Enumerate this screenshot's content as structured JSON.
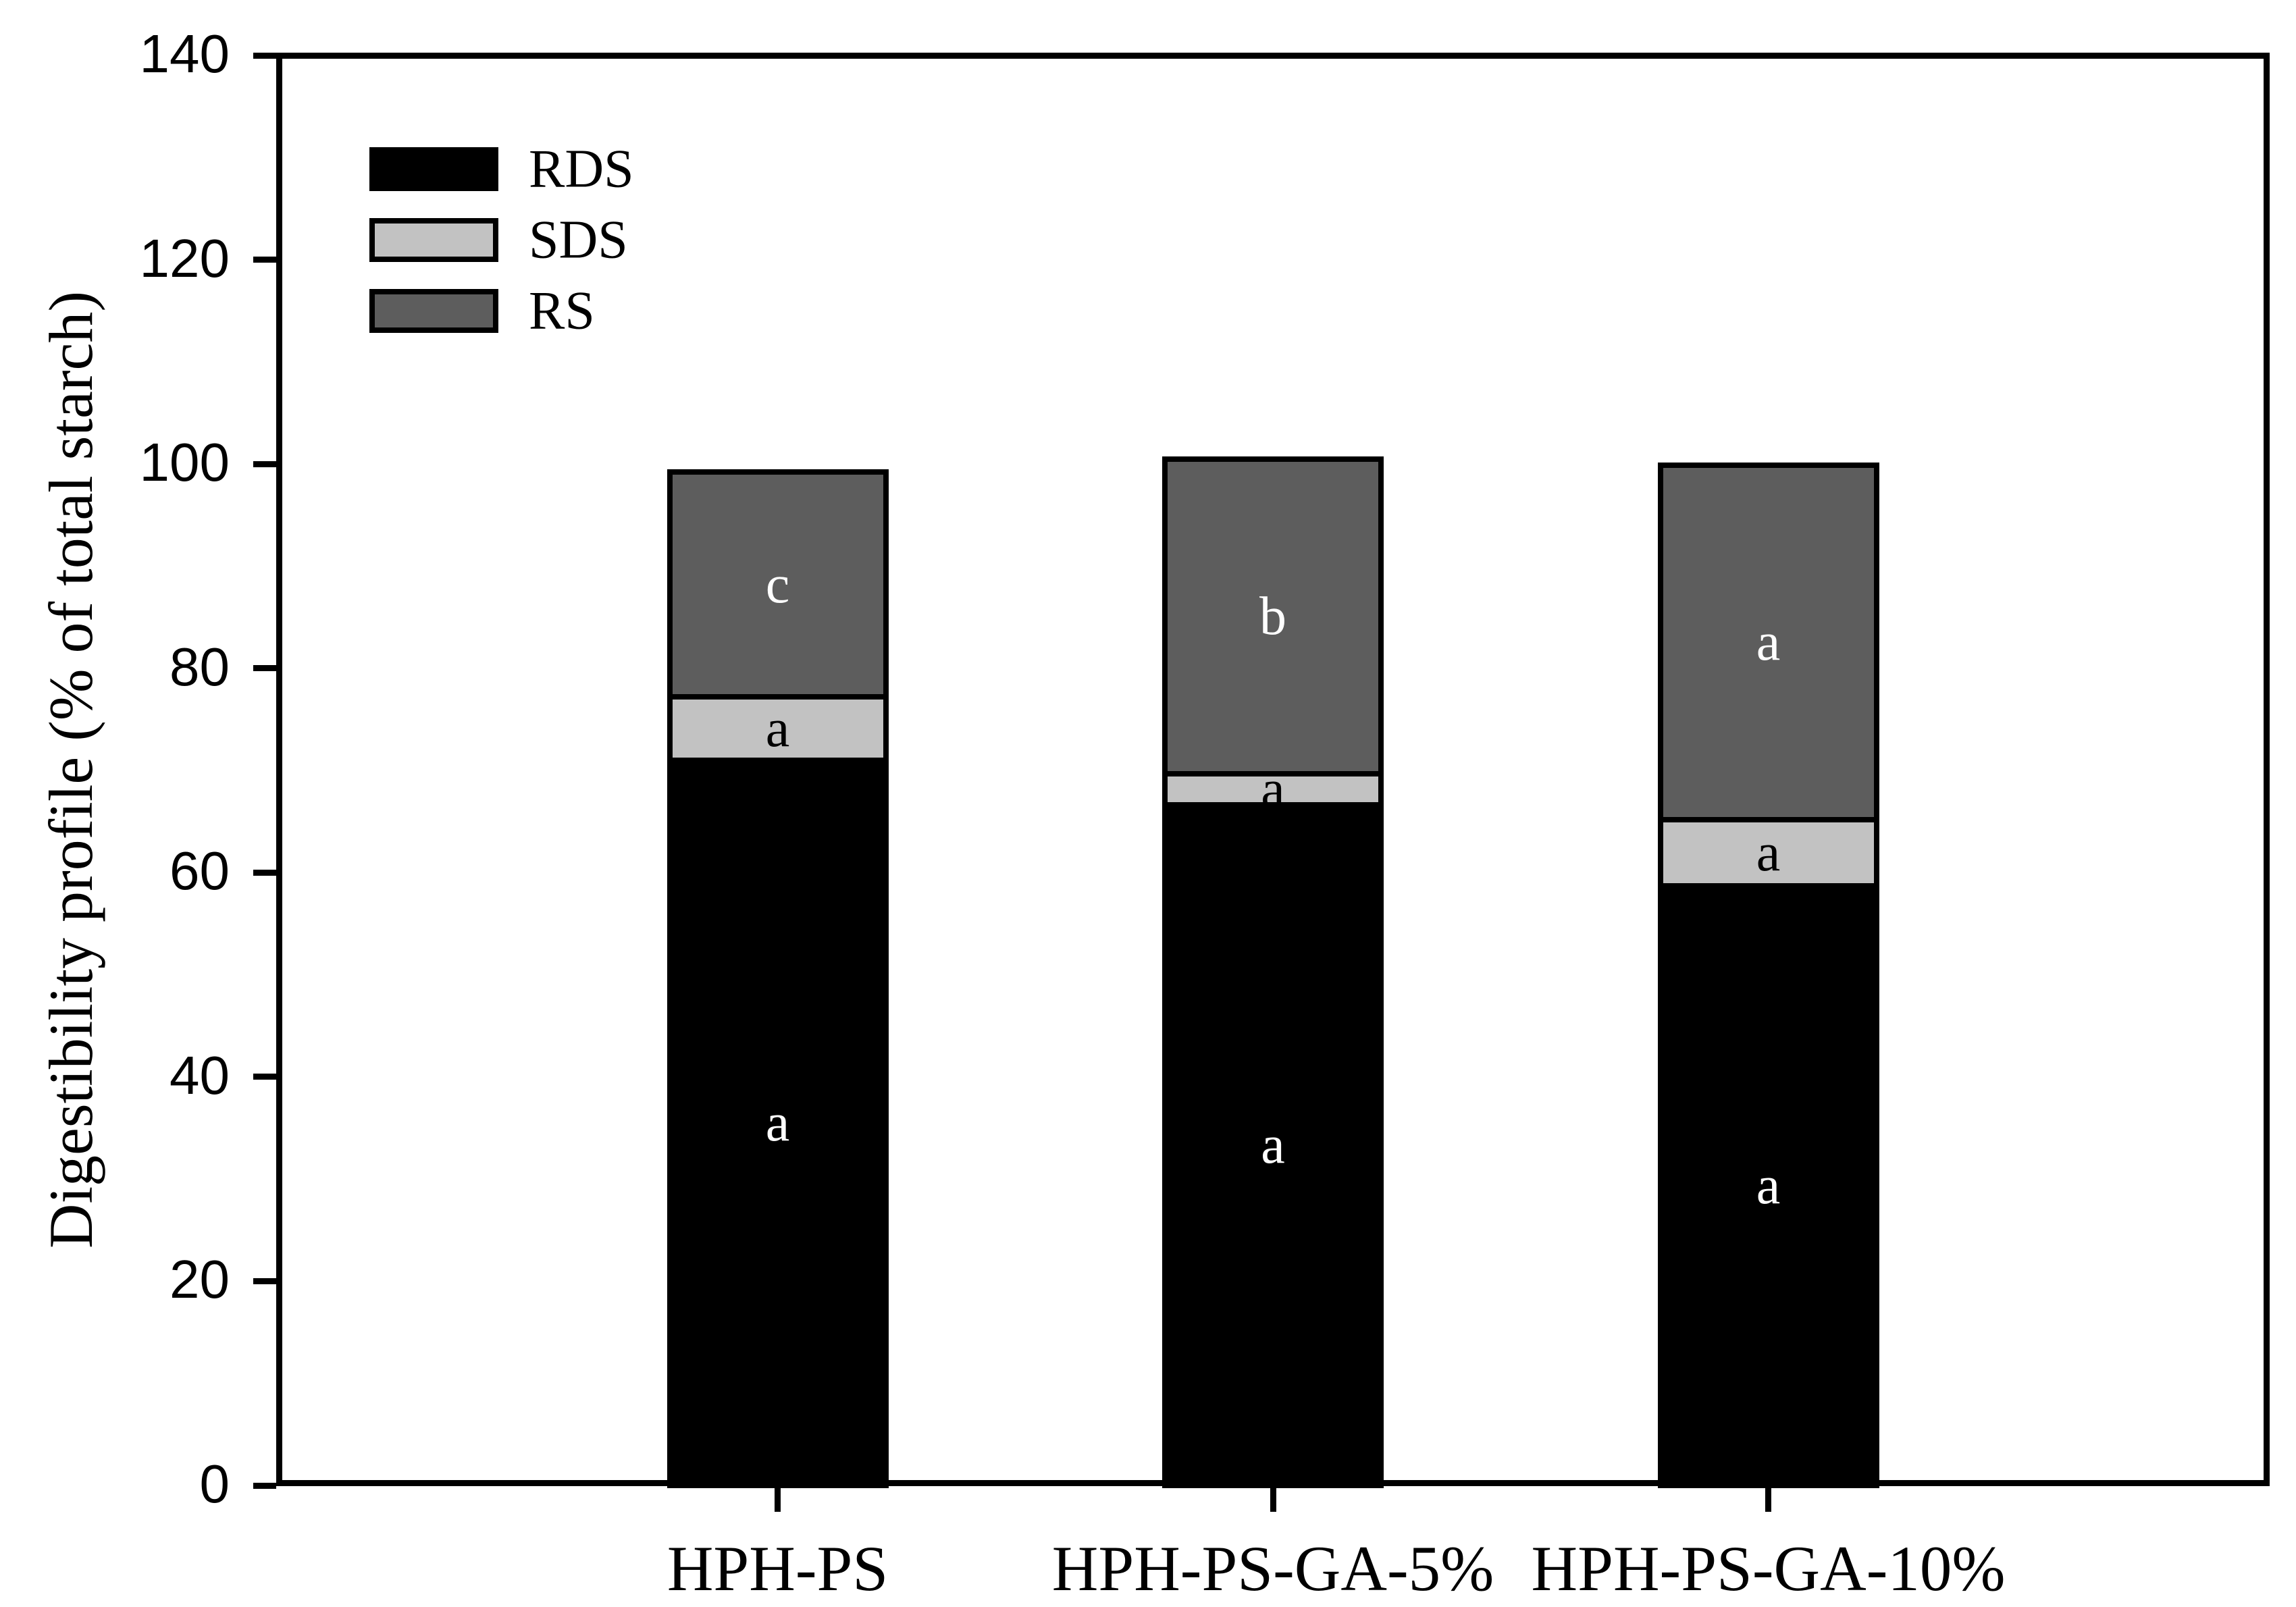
{
  "chart_data": {
    "type": "bar",
    "stacked": true,
    "title": "",
    "xlabel": "",
    "ylabel": "Digestibility profile (% of total starch)",
    "ylim": [
      0,
      140
    ],
    "y_ticks": [
      0,
      20,
      40,
      60,
      80,
      100,
      120,
      140
    ],
    "grid": "off",
    "legend_position": "upper-left-inside",
    "categories": [
      "HPH-PS",
      "HPH-PS-GA-5%",
      "HPH-PS-GA-10%"
    ],
    "series": [
      {
        "name": "RDS",
        "color": "#000000",
        "values": [
          71.0,
          66.6,
          58.7
        ],
        "segment_labels": [
          "a",
          "a",
          "a"
        ],
        "label_color": "#ffffff"
      },
      {
        "name": "SDS",
        "color": "#c2c2c2",
        "values": [
          6.2,
          3.1,
          6.5
        ],
        "segment_labels": [
          "a",
          "a",
          "a"
        ],
        "label_color": "#000000"
      },
      {
        "name": "RS",
        "color": "#5d5d5d",
        "values": [
          22.0,
          30.8,
          34.7
        ],
        "segment_labels": [
          "c",
          "b",
          "a"
        ],
        "label_color": "#ffffff"
      }
    ],
    "stack_totals": [
      99.2,
      100.5,
      99.9
    ]
  }
}
